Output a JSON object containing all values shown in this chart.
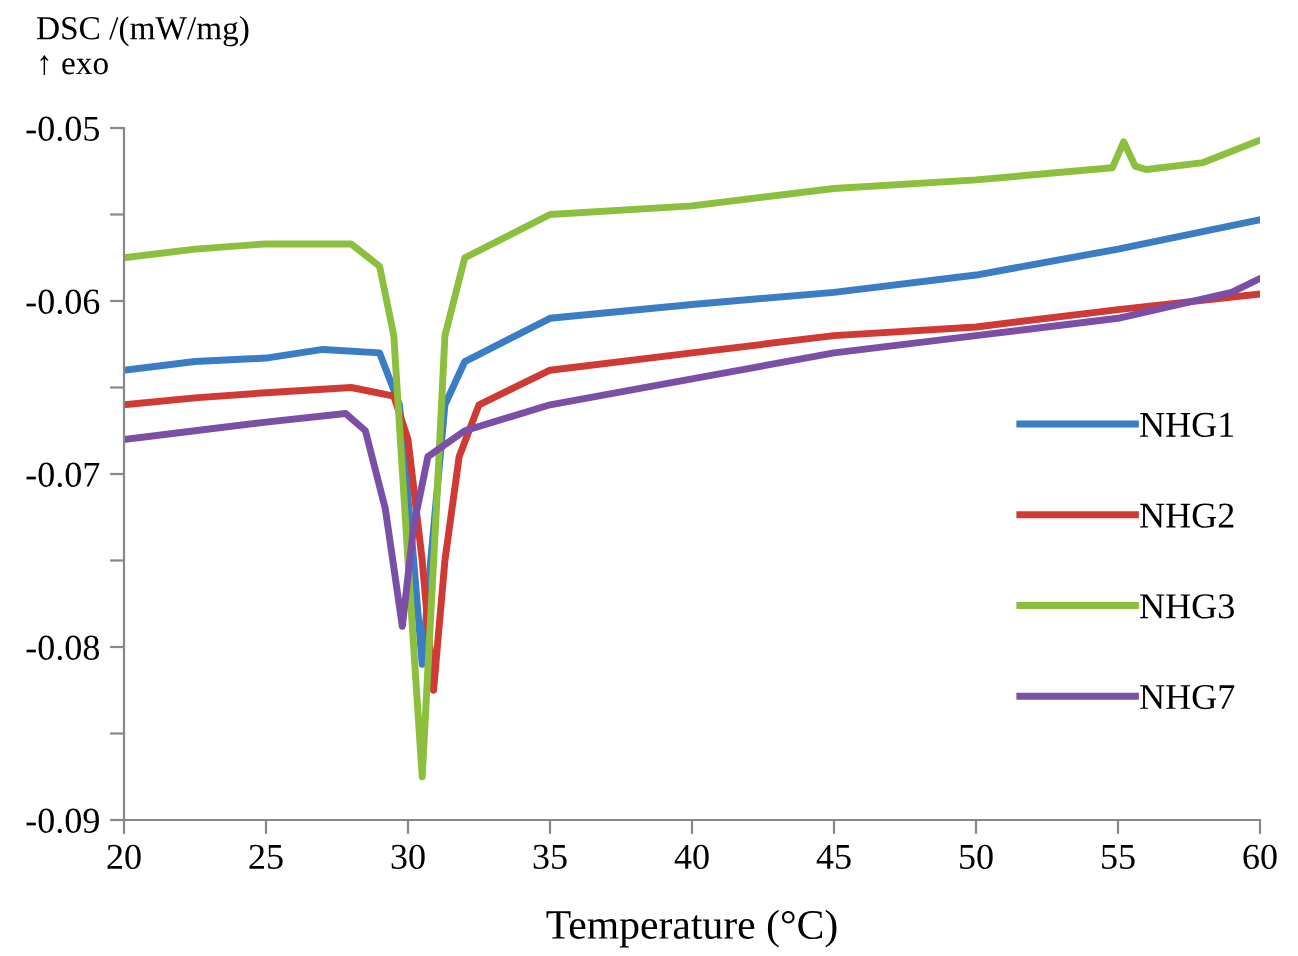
{
  "chart_data": {
    "type": "line",
    "ylabel": "DSC /(mW/mg)\n↑ exo",
    "xlabel": "Temperature (°C)",
    "xlim": [
      20,
      60
    ],
    "xticks": [
      20,
      25,
      30,
      35,
      40,
      45,
      50,
      55,
      60
    ],
    "ylim": [
      -0.09,
      -0.05
    ],
    "yticks": [
      -0.09,
      {
        "value": -0.085,
        "label": null
      },
      -0.08,
      {
        "value": -0.075,
        "label": null
      },
      -0.07,
      {
        "value": -0.065,
        "label": null
      },
      -0.06,
      {
        "value": -0.055,
        "label": null
      },
      -0.05
    ],
    "grid": false,
    "legend": "right",
    "marker": "none",
    "line_style": "solid",
    "series": [
      {
        "name": "NHG1",
        "color": "#3b7dc4",
        "x": [
          20,
          22.5,
          25,
          27,
          29,
          29.7,
          30.2,
          30.5,
          30.8,
          31.3,
          32,
          35,
          40,
          45,
          50,
          55,
          60
        ],
        "values": [
          -0.064,
          -0.0635,
          -0.0633,
          -0.0628,
          -0.063,
          -0.066,
          -0.075,
          -0.081,
          -0.075,
          -0.066,
          -0.0635,
          -0.061,
          -0.0602,
          -0.0595,
          -0.0585,
          -0.057,
          -0.0553
        ]
      },
      {
        "name": "NHG2",
        "color": "#d03a35",
        "x": [
          20,
          22.5,
          25,
          28,
          29.5,
          30,
          30.5,
          30.9,
          31.3,
          31.8,
          32.5,
          35,
          40,
          45,
          50,
          55,
          60
        ],
        "values": [
          -0.066,
          -0.0656,
          -0.0653,
          -0.065,
          -0.0655,
          -0.068,
          -0.075,
          -0.0825,
          -0.075,
          -0.069,
          -0.066,
          -0.064,
          -0.063,
          -0.062,
          -0.0615,
          -0.0605,
          -0.0596
        ]
      },
      {
        "name": "NHG3",
        "color": "#8dbf3f",
        "x": [
          20,
          22.5,
          25,
          28,
          29,
          29.5,
          30,
          30.5,
          31,
          31.3,
          32,
          35,
          40,
          45,
          50,
          54.8,
          55.2,
          55.6,
          56,
          58,
          60
        ],
        "values": [
          -0.0575,
          -0.057,
          -0.0567,
          -0.0567,
          -0.058,
          -0.062,
          -0.075,
          -0.0875,
          -0.072,
          -0.062,
          -0.0575,
          -0.055,
          -0.0545,
          -0.0535,
          -0.053,
          -0.0523,
          -0.0508,
          -0.0522,
          -0.0524,
          -0.052,
          -0.0507
        ]
      },
      {
        "name": "NHG7",
        "color": "#7b4fa6",
        "x": [
          20,
          22.5,
          25,
          27.8,
          28.5,
          29.2,
          29.8,
          30.2,
          30.7,
          32,
          35,
          40,
          45,
          50,
          55,
          59,
          60
        ],
        "values": [
          -0.068,
          -0.0675,
          -0.067,
          -0.0665,
          -0.0675,
          -0.072,
          -0.0788,
          -0.073,
          -0.069,
          -0.0675,
          -0.066,
          -0.0645,
          -0.063,
          -0.062,
          -0.061,
          -0.0595,
          -0.0587
        ]
      }
    ]
  }
}
